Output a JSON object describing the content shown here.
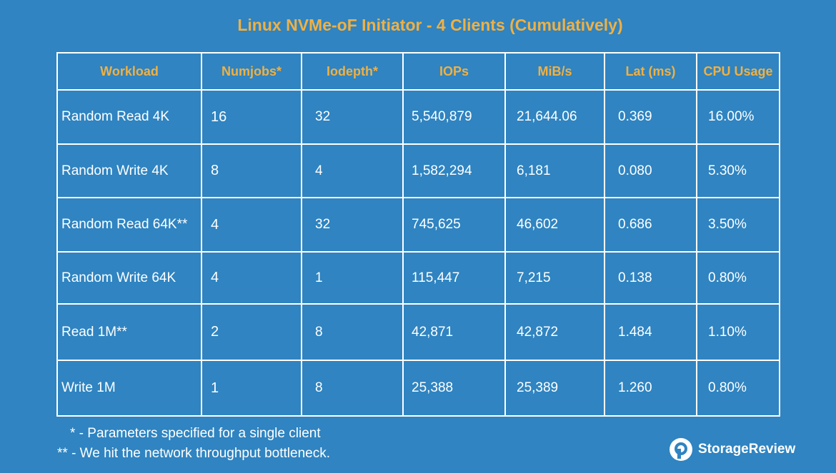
{
  "title": "Linux NVMe-oF Initiator - 4 Clients (Cumulatively)",
  "chart_data": {
    "type": "table",
    "title": "Linux NVMe-oF Initiator - 4 Clients (Cumulatively)",
    "columns": [
      "Workload",
      "Numjobs*",
      "Iodepth*",
      "IOPs",
      "MiB/s",
      "Lat (ms)",
      "CPU Usage"
    ],
    "rows": [
      [
        "Random Read 4K",
        "16",
        "32",
        "5,540,879",
        "21,644.06",
        "0.369",
        "16.00%"
      ],
      [
        "Random Write 4K",
        "8",
        "4",
        "1,582,294",
        "6,181",
        "0.080",
        "5.30%"
      ],
      [
        "Random Read 64K**",
        "4",
        "32",
        "745,625",
        "46,602",
        "0.686",
        "3.50%"
      ],
      [
        "Random Write 64K",
        "4",
        "1",
        "115,447",
        "7,215",
        "0.138",
        "0.80%"
      ],
      [
        "Read 1M**",
        "2",
        "8",
        "42,871",
        "42,872",
        "1.484",
        "1.10%"
      ],
      [
        "Write 1M",
        "1",
        "8",
        "25,388",
        "25,389",
        "1.260",
        "0.80%"
      ]
    ],
    "grid": true
  },
  "footnotes": {
    "single": "* - Parameters specified for a single client",
    "bottleneck": "** - We hit the network throughput bottleneck."
  },
  "brand": {
    "name": "StorageReview"
  },
  "colors": {
    "background": "#2f84c1",
    "header_text": "#f0b043",
    "cell_text": "#ffffff",
    "grid_lines": "#ffffff"
  }
}
